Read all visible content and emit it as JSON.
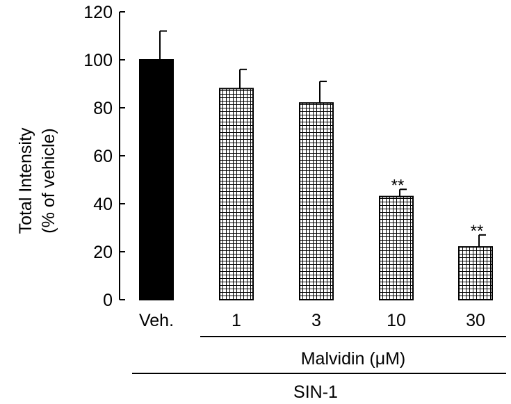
{
  "chart_data": {
    "type": "bar",
    "title": "",
    "ylabel_lines": [
      "Total Intensity",
      "(% of vehicle)"
    ],
    "xlabel": "",
    "ylim": [
      0,
      120
    ],
    "yticks": [
      0,
      20,
      40,
      60,
      80,
      100,
      120
    ],
    "categories": [
      "Veh.",
      "1",
      "3",
      "10",
      "30"
    ],
    "values": [
      100,
      88,
      82,
      43,
      22
    ],
    "error": [
      12,
      8,
      9,
      3,
      5
    ],
    "annotations": [
      "",
      "",
      "",
      "**",
      "**"
    ],
    "fills": [
      "solid",
      "grid",
      "grid",
      "grid",
      "grid"
    ],
    "colors": {
      "bar": "#000000",
      "grid_fill": "#ffffff"
    },
    "groups": [
      {
        "label": "Malvidin (μM)",
        "span": [
          "1",
          "30"
        ]
      },
      {
        "label": "SIN-1",
        "span": [
          "Veh.",
          "30"
        ]
      }
    ]
  }
}
